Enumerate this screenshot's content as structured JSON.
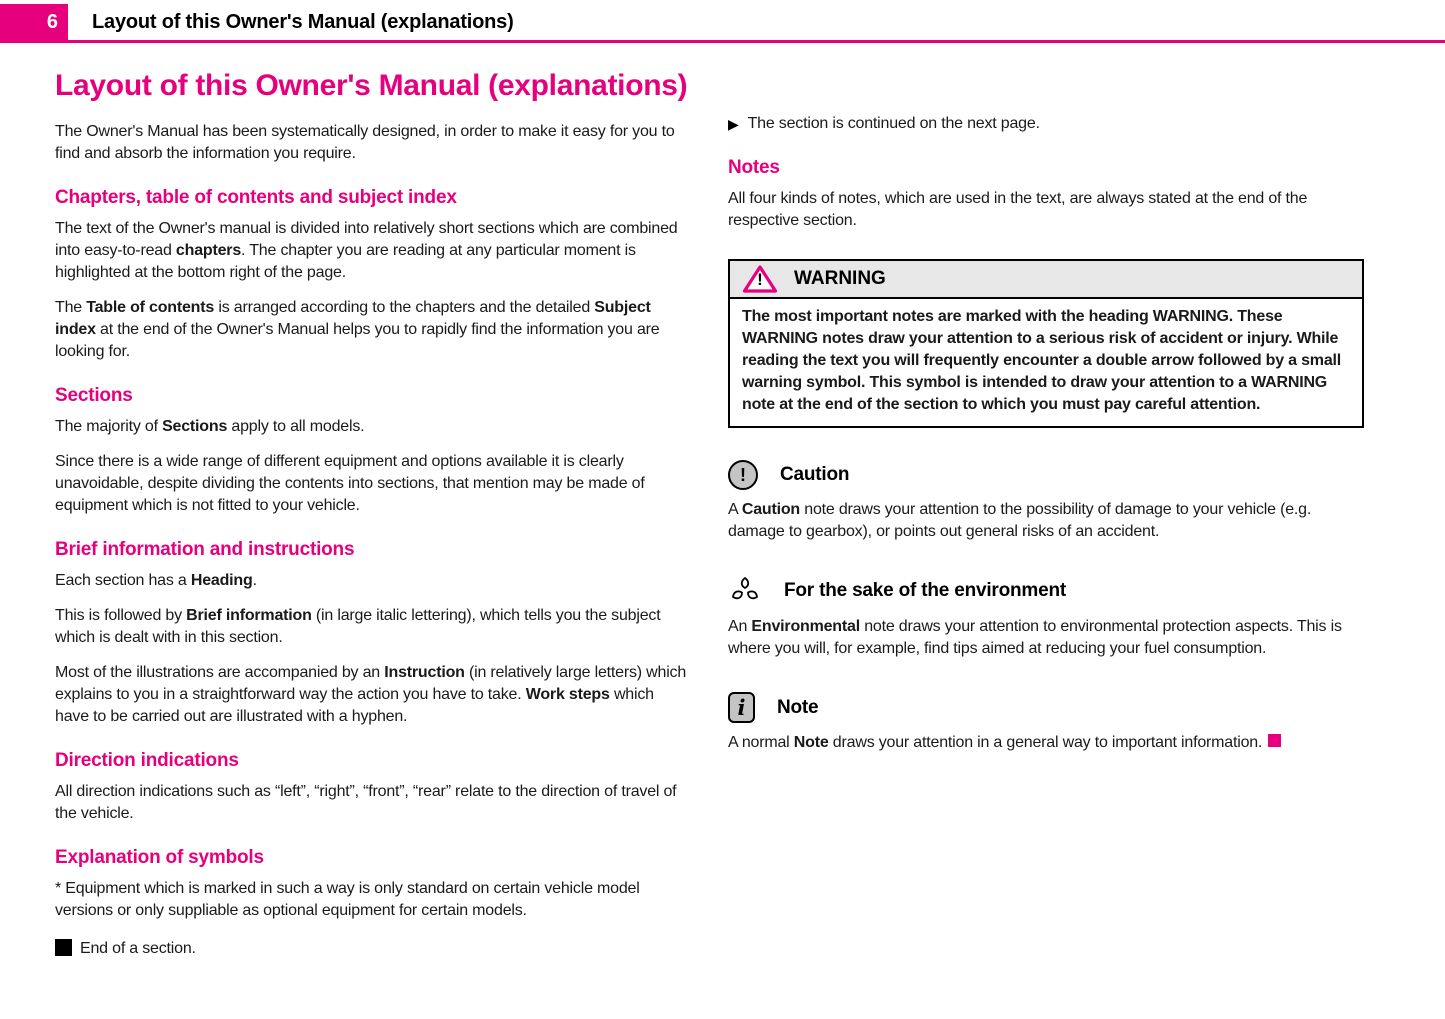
{
  "colors": {
    "accent": "#e6007e",
    "text": "#1a1a1a",
    "warning_header_bg": "#e7e7e7",
    "icon_gray": "#c4c4c4"
  },
  "header": {
    "page_number": "6",
    "title": "Layout of this Owner's Manual (explanations)"
  },
  "icons": {
    "continued_arrow": "▶",
    "warning_glyph": "!",
    "caution_glyph": "!",
    "note_glyph": "i",
    "warning_icon": "magenta-triangle-exclamation",
    "caution_icon": "gray-circle-exclamation",
    "environment_icon": "recycle-leaves",
    "note_icon": "info-i-rounded-square",
    "end_of_section_icon": "black-square",
    "end_of_text_icon": "magenta-square"
  },
  "main": {
    "title": "Layout of this Owner's Manual (explanations)",
    "left": {
      "intro": [
        {
          "t": "The Owner's Manual has been systematically designed, in order to make it easy for you to find and absorb the information you require."
        }
      ],
      "sections": [
        {
          "heading": "Chapters, table of contents and subject index",
          "paragraphs": [
            [
              {
                "t": "The text of the Owner's manual is divided into relatively short sections which are combined into easy-to-read "
              },
              {
                "t": "chapters",
                "b": true
              },
              {
                "t": ". The chapter you are reading at any particular moment is highlighted at the bottom right of the page."
              }
            ],
            [
              {
                "t": "The "
              },
              {
                "t": "Table of contents",
                "b": true
              },
              {
                "t": " is arranged according to the chapters and the detailed "
              },
              {
                "t": "Subject index",
                "b": true
              },
              {
                "t": " at the end of the Owner's Manual helps you to rapidly find the information you are looking for."
              }
            ]
          ]
        },
        {
          "heading": "Sections",
          "paragraphs": [
            [
              {
                "t": "The majority of "
              },
              {
                "t": "Sections",
                "b": true
              },
              {
                "t": " apply to all models."
              }
            ],
            [
              {
                "t": "Since there is a wide range of different equipment and options available it is clearly unavoidable, despite dividing the contents into sections, that mention may be made of equipment which is not fitted to your vehicle."
              }
            ]
          ]
        },
        {
          "heading": "Brief information and instructions",
          "paragraphs": [
            [
              {
                "t": "Each section has a "
              },
              {
                "t": "Heading",
                "b": true
              },
              {
                "t": "."
              }
            ],
            [
              {
                "t": "This is followed by "
              },
              {
                "t": "Brief information",
                "b": true
              },
              {
                "t": " (in large italic lettering), which tells you the subject which is dealt with in this section."
              }
            ],
            [
              {
                "t": "Most of the illustrations are accompanied by an "
              },
              {
                "t": "Instruction",
                "b": true
              },
              {
                "t": " (in relatively large letters) which explains to you in a straightforward way the action you have to take. "
              },
              {
                "t": "Work steps",
                "b": true
              },
              {
                "t": " which have to be carried out are illustrated with a hyphen."
              }
            ]
          ]
        },
        {
          "heading": "Direction indications",
          "paragraphs": [
            [
              {
                "t": "All direction indications such as “left”, “right”, “front”, “rear” relate to the direction of travel of the vehicle."
              }
            ]
          ]
        },
        {
          "heading": "Explanation of symbols",
          "paragraphs": [
            [
              {
                "t": "* Equipment which is marked in such a way is only standard on certain vehicle model versions or only suppliable as optional equipment for certain models."
              }
            ]
          ]
        }
      ],
      "end_label": "End of a section."
    },
    "right": {
      "continued": "The section is continued on the next page.",
      "notes_heading": "Notes",
      "notes_paragraph": [
        {
          "t": "All four kinds of notes, which are used in the text, are always stated at the end of the respective section."
        }
      ],
      "warning": {
        "title": "WARNING",
        "text": "The most important notes are marked with the heading WARNING. These WARNING notes draw your attention to a serious risk of accident or injury. While reading the text you will frequently encounter a double arrow followed by a small warning symbol. This symbol is intended to draw your attention to a WARNING note at the end of the section to which you must pay careful attention."
      },
      "caution": {
        "title": "Caution",
        "paragraph": [
          {
            "t": "A "
          },
          {
            "t": "Caution",
            "b": true
          },
          {
            "t": " note draws your attention to the possibility of damage to your vehicle (e.g. damage to gearbox), or points out general risks of an accident."
          }
        ]
      },
      "environment": {
        "title": "For the sake of the environment",
        "paragraph": [
          {
            "t": "An "
          },
          {
            "t": "Environmental",
            "b": true
          },
          {
            "t": " note draws your attention to environmental protection aspects. This is where you will, for example, find tips aimed at reducing your fuel consumption."
          }
        ]
      },
      "note": {
        "title": "Note",
        "paragraph": [
          {
            "t": "A normal "
          },
          {
            "t": "Note",
            "b": true
          },
          {
            "t": " draws your attention in a general way to important information."
          }
        ]
      }
    }
  }
}
